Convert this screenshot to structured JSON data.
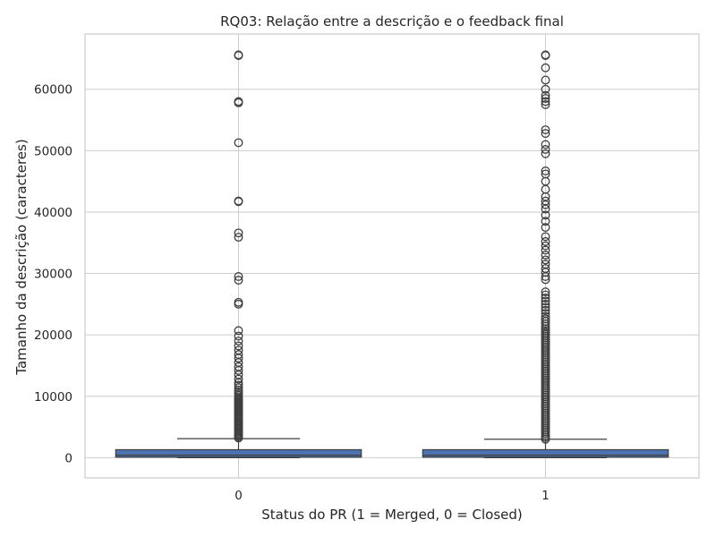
{
  "chart_data": {
    "type": "box",
    "title": "RQ03: Relação entre a descrição e o feedback final",
    "xlabel": "Status do PR (1 = Merged, 0 = Closed)",
    "ylabel": "Tamanho da descrição (caracteres)",
    "ylim": [
      -3300,
      69000
    ],
    "yticks": [
      0,
      10000,
      20000,
      30000,
      40000,
      50000,
      60000
    ],
    "ytick_labels": [
      "0",
      "10000",
      "20000",
      "30000",
      "40000",
      "50000",
      "60000"
    ],
    "grid": true,
    "colors": {
      "box_fill": "#4c72b0",
      "line": "#3f3f3f",
      "grid": "#cccccc",
      "frame": "#cccccc"
    },
    "categories": [
      "0",
      "1"
    ],
    "boxes": [
      {
        "category": "0",
        "min": 0,
        "q1": 80,
        "median": 400,
        "q3": 1300,
        "whisker_high": 3100,
        "outliers": [
          3200,
          3400,
          3600,
          3800,
          4000,
          4200,
          4400,
          4600,
          4800,
          5000,
          5200,
          5400,
          5600,
          5800,
          6000,
          6200,
          6400,
          6600,
          6800,
          7000,
          7200,
          7400,
          7600,
          7800,
          8000,
          8200,
          8400,
          8600,
          8800,
          9000,
          9200,
          9400,
          9600,
          9800,
          10100,
          10400,
          10700,
          11000,
          11400,
          11800,
          12200,
          12800,
          13500,
          14200,
          14800,
          15500,
          16200,
          16800,
          17500,
          18200,
          19000,
          19800,
          20700,
          25000,
          25300,
          28900,
          29500,
          35900,
          36600,
          41700,
          41800,
          51300,
          57800,
          58000,
          65500,
          65600
        ]
      },
      {
        "category": "1",
        "min": 0,
        "q1": 80,
        "median": 400,
        "q3": 1300,
        "whisker_high": 3000,
        "outliers": [
          3000,
          3300,
          3600,
          3900,
          4200,
          4500,
          4800,
          5100,
          5400,
          5700,
          6000,
          6300,
          6600,
          6900,
          7200,
          7500,
          7800,
          8100,
          8400,
          8700,
          9000,
          9300,
          9600,
          9900,
          10200,
          10500,
          10800,
          11100,
          11400,
          11700,
          12000,
          12300,
          12600,
          12900,
          13200,
          13500,
          13800,
          14100,
          14400,
          14700,
          15000,
          15300,
          15600,
          15900,
          16200,
          16500,
          16800,
          17100,
          17400,
          17700,
          18000,
          18300,
          18600,
          18900,
          19200,
          19500,
          19800,
          20100,
          20400,
          20700,
          21000,
          21400,
          21800,
          22200,
          22600,
          23000,
          23500,
          24000,
          24500,
          25000,
          25500,
          26000,
          26500,
          27000,
          29000,
          29500,
          30200,
          30800,
          31500,
          32200,
          33000,
          33800,
          34500,
          35200,
          36000,
          37500,
          38500,
          39500,
          40500,
          41200,
          41800,
          42500,
          43700,
          45000,
          46200,
          46700,
          49500,
          50200,
          51000,
          52800,
          53400,
          57500,
          58000,
          58500,
          59000,
          60000,
          61500,
          63500,
          65500,
          65600
        ]
      }
    ]
  }
}
